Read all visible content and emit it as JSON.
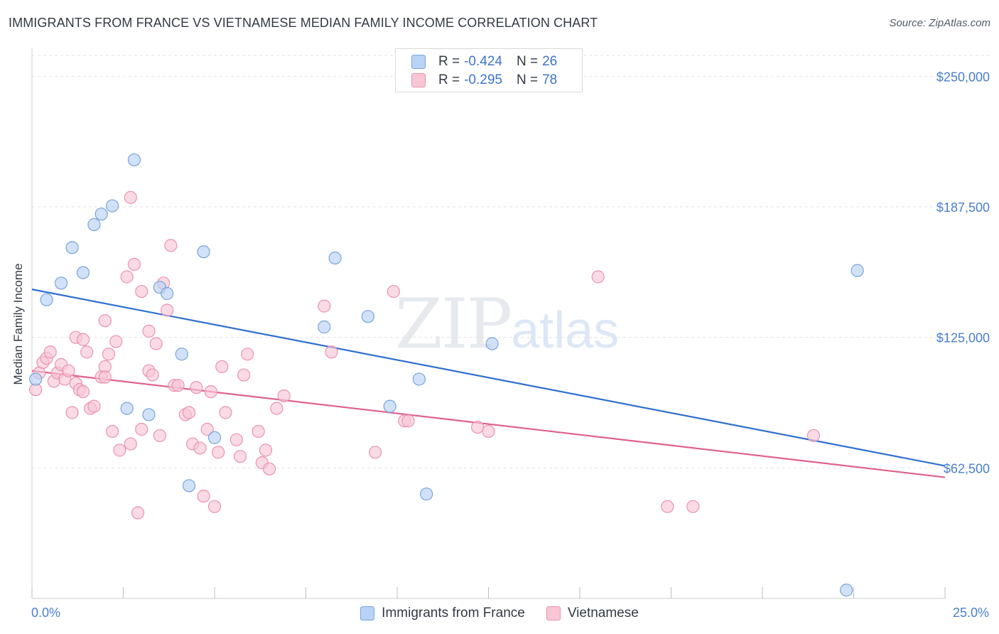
{
  "header": {
    "title": "IMMIGRANTS FROM FRANCE VS VIETNAMESE MEDIAN FAMILY INCOME CORRELATION CHART",
    "source": "Source: ZipAtlas.com"
  },
  "watermark": {
    "zip": "ZIP",
    "atlas": "atlas"
  },
  "legend": {
    "rows": [
      {
        "r_label": "R =",
        "r_value": "-0.424",
        "n_label": "N =",
        "n_value": "26"
      },
      {
        "r_label": "R =",
        "r_value": "-0.295",
        "n_label": "N =",
        "n_value": "78"
      }
    ]
  },
  "colors": {
    "france_fill": "#b8d3f5",
    "france_stroke": "#7aa3dc",
    "france_line": "#2f6fd0",
    "viet_fill": "#f8c6d5",
    "viet_stroke": "#ea93ae",
    "viet_line": "#e0608c",
    "grid": "#e2e2e2",
    "axis_label": "#4a7fd0"
  },
  "chart_data": {
    "type": "scatter",
    "title": "IMMIGRANTS FROM FRANCE VS VIETNAMESE MEDIAN FAMILY INCOME CORRELATION CHART",
    "xlabel": "",
    "ylabel": "Median Family Income",
    "xlim": [
      0,
      25
    ],
    "ylim": [
      0,
      260000
    ],
    "x_tick_labels": [
      "0.0%",
      "25.0%"
    ],
    "y_ticks": [
      62500,
      125000,
      187500,
      250000
    ],
    "y_tick_labels": [
      "$62,500",
      "$125,000",
      "$187,500",
      "$250,000"
    ],
    "grid": true,
    "legend_position": "top-center",
    "series": [
      {
        "name": "Immigrants from France",
        "trend": {
          "x": [
            0,
            25
          ],
          "y": [
            148000,
            63500
          ]
        },
        "points": [
          [
            0.1,
            105000
          ],
          [
            0.4,
            143000
          ],
          [
            0.8,
            151000
          ],
          [
            1.1,
            168000
          ],
          [
            1.4,
            156000
          ],
          [
            1.7,
            179000
          ],
          [
            1.9,
            184000
          ],
          [
            2.2,
            188000
          ],
          [
            2.6,
            91000
          ],
          [
            2.8,
            210000
          ],
          [
            3.2,
            88000
          ],
          [
            3.5,
            149000
          ],
          [
            3.7,
            146000
          ],
          [
            4.1,
            117000
          ],
          [
            4.3,
            54000
          ],
          [
            4.7,
            166000
          ],
          [
            5.0,
            77000
          ],
          [
            8.0,
            130000
          ],
          [
            8.3,
            163000
          ],
          [
            9.2,
            135000
          ],
          [
            9.8,
            92000
          ],
          [
            10.6,
            105000
          ],
          [
            10.8,
            50000
          ],
          [
            12.6,
            122000
          ],
          [
            22.6,
            157000
          ],
          [
            22.3,
            4000
          ]
        ]
      },
      {
        "name": "Vietnamese",
        "trend": {
          "x": [
            0,
            25
          ],
          "y": [
            109000,
            58000
          ]
        },
        "points": [
          [
            0.1,
            100000
          ],
          [
            0.2,
            108000
          ],
          [
            0.3,
            113000
          ],
          [
            0.4,
            115000
          ],
          [
            0.5,
            118000
          ],
          [
            0.6,
            104000
          ],
          [
            0.7,
            108000
          ],
          [
            0.8,
            112000
          ],
          [
            0.9,
            105000
          ],
          [
            1.0,
            109000
          ],
          [
            1.1,
            89000
          ],
          [
            1.2,
            103000
          ],
          [
            1.2,
            125000
          ],
          [
            1.3,
            100000
          ],
          [
            1.4,
            99000
          ],
          [
            1.4,
            124000
          ],
          [
            1.5,
            118000
          ],
          [
            1.6,
            91000
          ],
          [
            1.7,
            92000
          ],
          [
            1.9,
            106000
          ],
          [
            2.0,
            111000
          ],
          [
            2.0,
            106000
          ],
          [
            2.0,
            133000
          ],
          [
            2.1,
            117000
          ],
          [
            2.2,
            80000
          ],
          [
            2.3,
            123000
          ],
          [
            2.4,
            71000
          ],
          [
            2.6,
            154000
          ],
          [
            2.7,
            192000
          ],
          [
            2.7,
            74000
          ],
          [
            2.8,
            160000
          ],
          [
            2.9,
            41000
          ],
          [
            3.0,
            81000
          ],
          [
            3.0,
            147000
          ],
          [
            3.2,
            128000
          ],
          [
            3.2,
            109000
          ],
          [
            3.3,
            107000
          ],
          [
            3.4,
            122000
          ],
          [
            3.5,
            78000
          ],
          [
            3.6,
            151000
          ],
          [
            3.7,
            138000
          ],
          [
            3.8,
            169000
          ],
          [
            3.9,
            102000
          ],
          [
            4.0,
            102000
          ],
          [
            4.2,
            88000
          ],
          [
            4.3,
            89000
          ],
          [
            4.4,
            74000
          ],
          [
            4.5,
            101000
          ],
          [
            4.6,
            72000
          ],
          [
            4.7,
            49000
          ],
          [
            4.8,
            81000
          ],
          [
            4.9,
            99000
          ],
          [
            5.0,
            44000
          ],
          [
            5.1,
            70000
          ],
          [
            5.2,
            111000
          ],
          [
            5.3,
            89000
          ],
          [
            5.6,
            76000
          ],
          [
            5.7,
            68000
          ],
          [
            5.8,
            107000
          ],
          [
            5.9,
            117000
          ],
          [
            6.2,
            80000
          ],
          [
            6.3,
            65000
          ],
          [
            6.4,
            71000
          ],
          [
            6.5,
            62000
          ],
          [
            6.7,
            91000
          ],
          [
            6.9,
            97000
          ],
          [
            8.0,
            140000
          ],
          [
            8.2,
            118000
          ],
          [
            9.4,
            70000
          ],
          [
            9.9,
            147000
          ],
          [
            10.2,
            85000
          ],
          [
            10.3,
            85000
          ],
          [
            12.2,
            82000
          ],
          [
            12.5,
            80000
          ],
          [
            15.5,
            154000
          ],
          [
            17.4,
            44000
          ],
          [
            18.1,
            44000
          ],
          [
            21.4,
            78000
          ]
        ]
      }
    ]
  },
  "legend_bottom": [
    "Immigrants from France",
    "Vietnamese"
  ]
}
